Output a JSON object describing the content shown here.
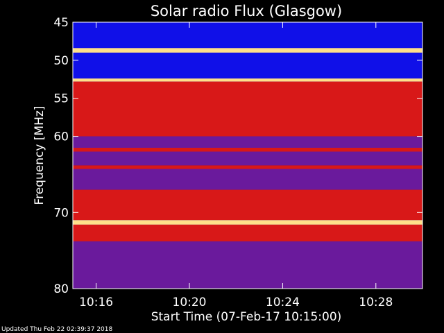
{
  "chart_data": {
    "type": "heatmap",
    "title": "Solar radio Flux (Glasgow)",
    "ylabel": "Frequency [MHz]",
    "xlabel": "Start Time (07-Feb-17 10:15:00)",
    "footer": "Updated Thu Feb 22 02:39:37 2018",
    "y_range": [
      45,
      80
    ],
    "y_ticks": [
      "45",
      "50",
      "55",
      "60",
      "70",
      "80"
    ],
    "y_tick_values": [
      45,
      50,
      55,
      60,
      70,
      80
    ],
    "x_range": [
      "10:15:00",
      "10:30:00"
    ],
    "x_ticks": [
      "10:16",
      "10:20",
      "10:24",
      "10:28"
    ],
    "x_tick_minutes": [
      16,
      20,
      24,
      28
    ],
    "colors": {
      "background": "#000000",
      "text": "#ffffff",
      "low": "#1010e8",
      "mid": "#6a1a9c",
      "high": "#d81818",
      "peak": "#ffe08a"
    },
    "bands": [
      {
        "from": 45.0,
        "to": 48.4,
        "level": "low"
      },
      {
        "from": 48.4,
        "to": 49.0,
        "level": "peak"
      },
      {
        "from": 49.0,
        "to": 52.4,
        "level": "low"
      },
      {
        "from": 52.4,
        "to": 52.8,
        "level": "peak"
      },
      {
        "from": 52.8,
        "to": 60.0,
        "level": "high"
      },
      {
        "from": 60.0,
        "to": 61.5,
        "level": "mid"
      },
      {
        "from": 61.5,
        "to": 62.0,
        "level": "high"
      },
      {
        "from": 62.0,
        "to": 63.8,
        "level": "mid"
      },
      {
        "from": 63.8,
        "to": 64.3,
        "level": "high"
      },
      {
        "from": 64.3,
        "to": 67.0,
        "level": "mid"
      },
      {
        "from": 67.0,
        "to": 71.0,
        "level": "high"
      },
      {
        "from": 71.0,
        "to": 71.6,
        "level": "peak"
      },
      {
        "from": 71.6,
        "to": 73.8,
        "level": "high"
      },
      {
        "from": 73.8,
        "to": 80.0,
        "level": "mid"
      }
    ]
  }
}
